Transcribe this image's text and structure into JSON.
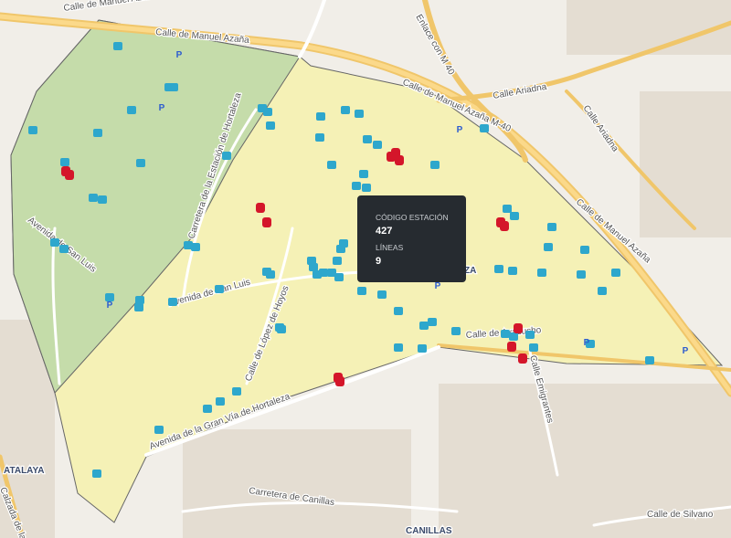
{
  "tooltip": {
    "code_label": "CÓDIGO ESTACIÓN",
    "code": 427,
    "lines_label": "LÍNEAS",
    "lines": 9
  },
  "streets": [
    "Calle de Manuel Azaña",
    "Calle de Manuel Azaña",
    "Enlace con M 40",
    "Calle Ariadna",
    "Calle Ariadna",
    "Calle de Manuel Azaña M-40",
    "Calle de Manuel Azaña",
    "Carretera de la Estación de Hortaleza",
    "Avenida de San Luis",
    "Avenida de San Luis",
    "Calle de López de Hoyos",
    "Avenida de la Gran Vía de Hortaleza",
    "Calle de Ayacucho",
    "Calle Emigrantes",
    "Carretera de Canillas",
    "Calle de Silvano",
    "Calzada de la"
  ],
  "places": [
    "ATALAYA",
    "CANILLAS",
    "ZA"
  ],
  "parking_symbol": "P"
}
